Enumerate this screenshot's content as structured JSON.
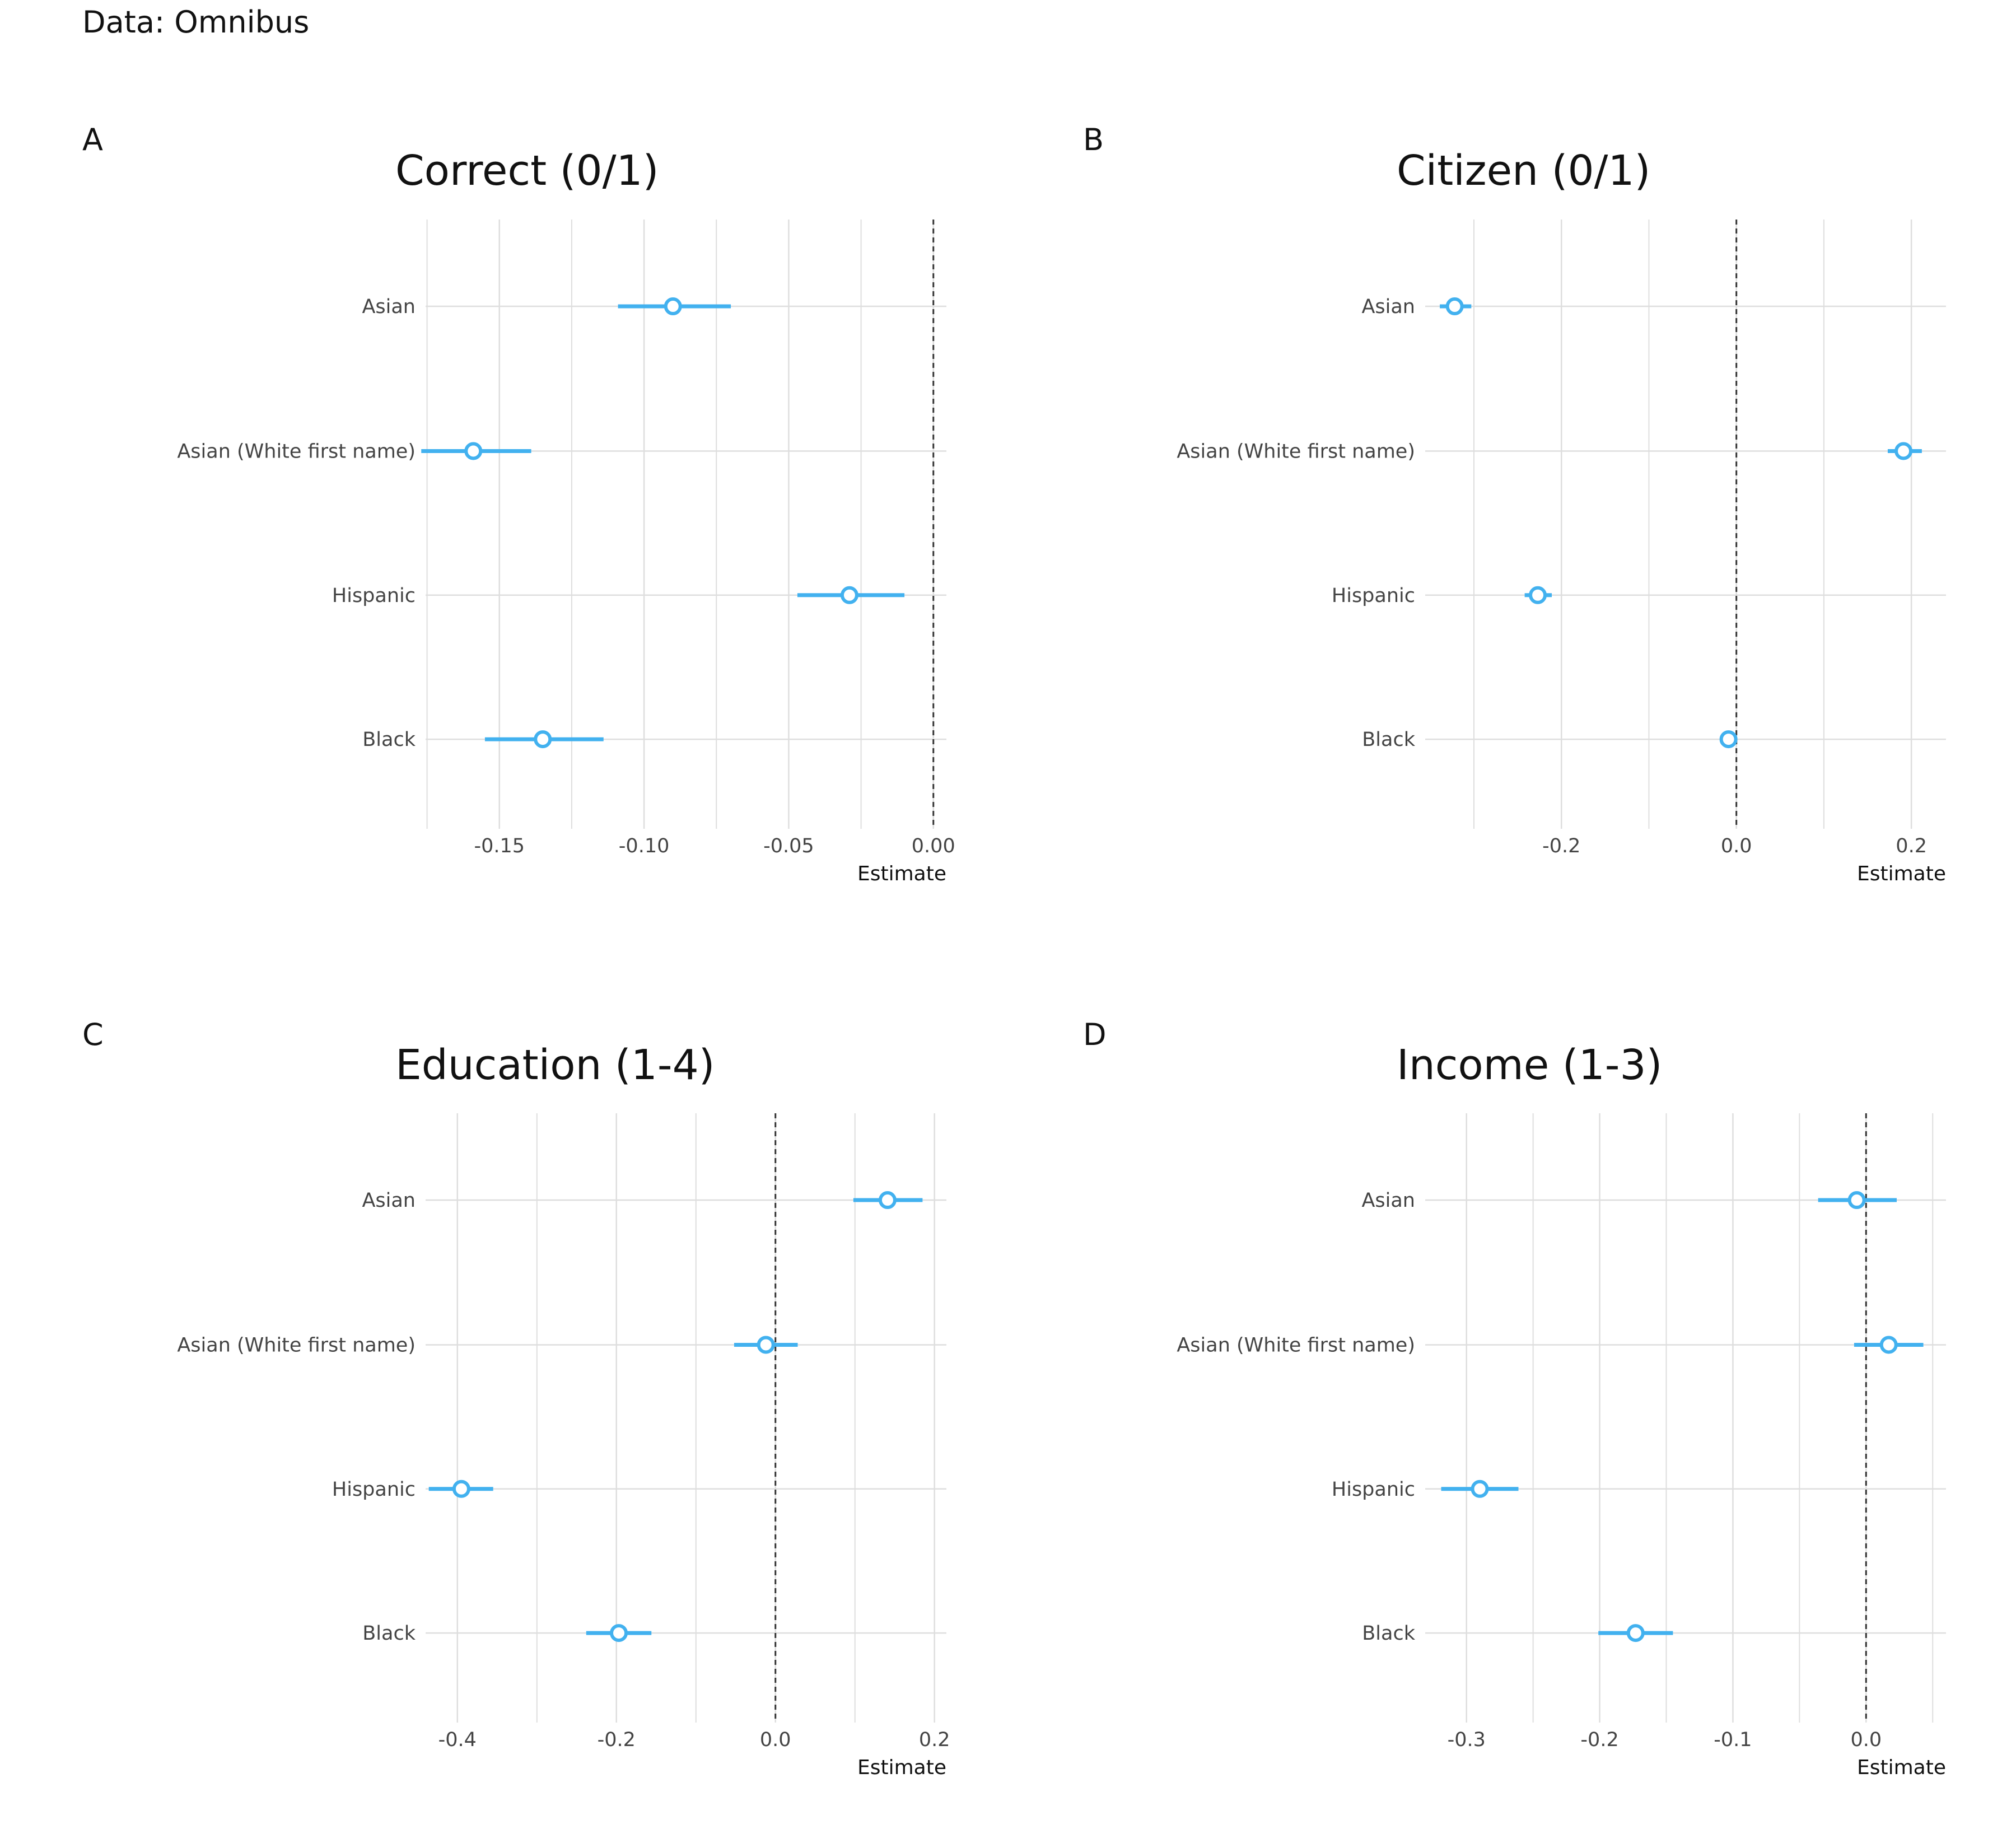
{
  "figure": {
    "caption": "Data: Omnibus"
  },
  "style": {
    "point_color": "#42b1ef",
    "grid_color": "#dedede",
    "ref_line_color": "#333333",
    "tick_text_color": "#444444"
  },
  "chart_data": [
    {
      "type": "scatter",
      "panel_letter": "A",
      "title": "Correct (0/1)",
      "xlabel": "Estimate",
      "ylabel": "",
      "categories": [
        "Asian",
        "Asian (White first name)",
        "Hispanic",
        "Black"
      ],
      "estimates": [
        -0.09,
        -0.159,
        -0.029,
        -0.135
      ],
      "ci_low": [
        -0.109,
        -0.177,
        -0.047,
        -0.155
      ],
      "ci_high": [
        -0.07,
        -0.139,
        -0.01,
        -0.114
      ],
      "xlim": [
        -0.1755,
        0.0045
      ],
      "xticks": [
        -0.15,
        -0.1,
        -0.05,
        0.0
      ],
      "xtick_labels": [
        "-0.15",
        "-0.10",
        "-0.05",
        "0.00"
      ],
      "minor_ticks": [
        -0.175,
        -0.125,
        -0.075,
        -0.025
      ],
      "reference_line": 0,
      "grid": true
    },
    {
      "type": "scatter",
      "panel_letter": "B",
      "title": "Citizen (0/1)",
      "xlabel": "Estimate",
      "ylabel": "",
      "categories": [
        "Asian",
        "Asian (White first name)",
        "Hispanic",
        "Black"
      ],
      "estimates": [
        -0.322,
        0.191,
        -0.227,
        -0.009
      ],
      "ci_low": [
        -0.339,
        0.173,
        -0.242,
        -0.019
      ],
      "ci_high": [
        -0.303,
        0.212,
        -0.211,
        0.001
      ],
      "xlim": [
        -0.3557,
        0.2396
      ],
      "xticks": [
        -0.2,
        0.0,
        0.2
      ],
      "xtick_labels": [
        "-0.2",
        "0.0",
        "0.2"
      ],
      "minor_ticks": [
        -0.3,
        -0.1,
        0.1
      ],
      "reference_line": 0,
      "grid": true
    },
    {
      "type": "scatter",
      "panel_letter": "C",
      "title": "Education (1-4)",
      "xlabel": "Estimate",
      "ylabel": "",
      "categories": [
        "Asian",
        "Asian (White first name)",
        "Hispanic",
        "Black"
      ],
      "estimates": [
        0.141,
        -0.012,
        -0.395,
        -0.197
      ],
      "ci_low": [
        0.098,
        -0.052,
        -0.436,
        -0.238
      ],
      "ci_high": [
        0.185,
        0.028,
        -0.355,
        -0.156
      ],
      "xlim": [
        -0.44,
        0.215
      ],
      "xticks": [
        -0.4,
        -0.2,
        0.0,
        0.2
      ],
      "xtick_labels": [
        "-0.4",
        "-0.2",
        "0.0",
        "0.2"
      ],
      "minor_ticks": [
        -0.3,
        -0.1,
        0.1
      ],
      "reference_line": 0,
      "grid": true
    },
    {
      "type": "scatter",
      "panel_letter": "D",
      "title": "Income (1-3)",
      "xlabel": "Estimate",
      "ylabel": "",
      "categories": [
        "Asian",
        "Asian (White first name)",
        "Hispanic",
        "Black"
      ],
      "estimates": [
        -0.007,
        0.017,
        -0.29,
        -0.173
      ],
      "ci_low": [
        -0.036,
        -0.009,
        -0.319,
        -0.201
      ],
      "ci_high": [
        0.023,
        0.043,
        -0.261,
        -0.145
      ],
      "xlim": [
        -0.331,
        0.06
      ],
      "xticks": [
        -0.3,
        -0.2,
        -0.1,
        0.0
      ],
      "xtick_labels": [
        "-0.3",
        "-0.2",
        "-0.1",
        "0.0"
      ],
      "minor_ticks": [
        -0.25,
        -0.15,
        -0.05,
        0.05
      ],
      "reference_line": 0,
      "grid": true
    }
  ]
}
